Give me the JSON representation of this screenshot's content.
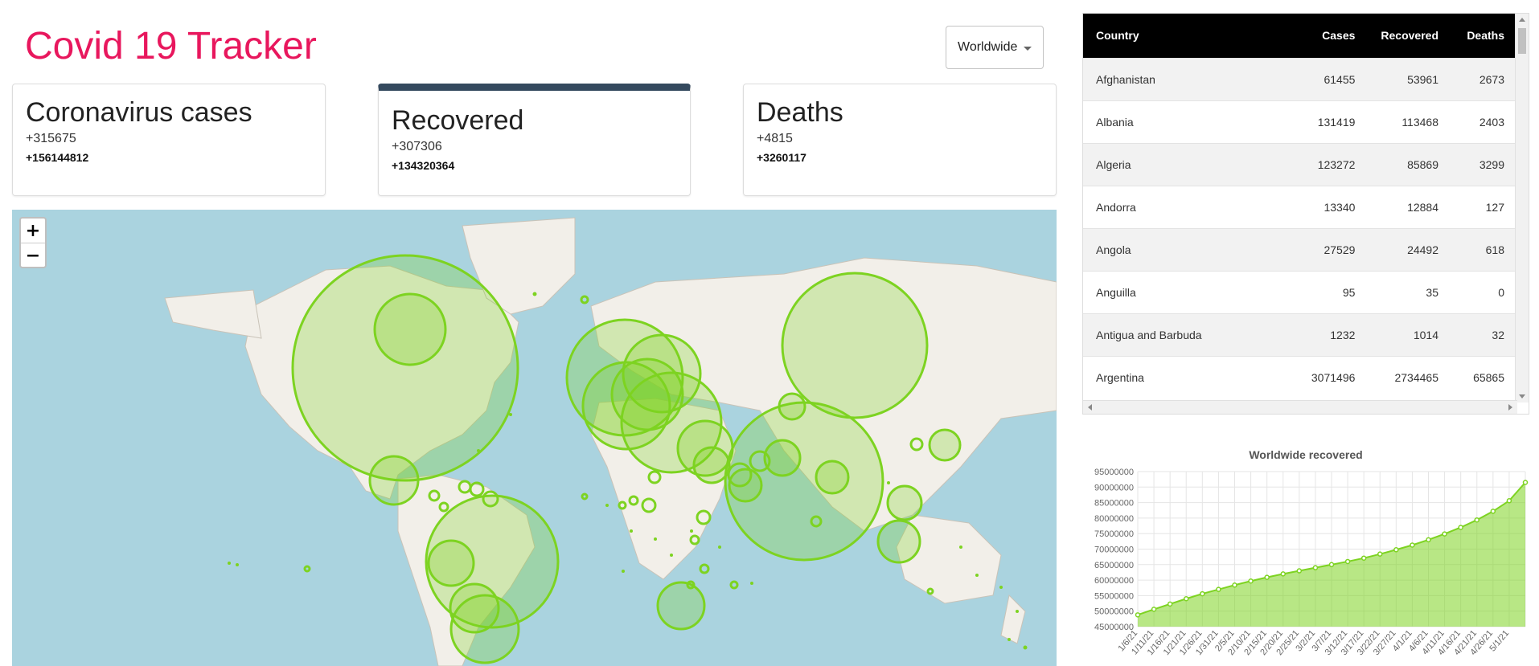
{
  "header": {
    "title": "Covid 19 Tracker",
    "country_select": "Worldwide"
  },
  "stats": [
    {
      "title": "Coronavirus cases",
      "today": "+315675",
      "total": "+156144812",
      "active": false
    },
    {
      "title": "Recovered",
      "today": "+307306",
      "total": "+134320364",
      "active": true
    },
    {
      "title": "Deaths",
      "today": "+4815",
      "total": "+3260117",
      "active": false
    }
  ],
  "map": {
    "zoom_in": "+",
    "zoom_out": "−",
    "circle_color": "#7dd321",
    "water_color": "#aad3df",
    "land_color": "#f2efe9"
  },
  "table": {
    "headers": [
      "Country",
      "Cases",
      "Recovered",
      "Deaths"
    ],
    "rows": [
      [
        "Afghanistan",
        "61455",
        "53961",
        "2673"
      ],
      [
        "Albania",
        "131419",
        "113468",
        "2403"
      ],
      [
        "Algeria",
        "123272",
        "85869",
        "3299"
      ],
      [
        "Andorra",
        "13340",
        "12884",
        "127"
      ],
      [
        "Angola",
        "27529",
        "24492",
        "618"
      ],
      [
        "Anguilla",
        "95",
        "35",
        "0"
      ],
      [
        "Antigua and Barbuda",
        "1232",
        "1014",
        "32"
      ],
      [
        "Argentina",
        "3071496",
        "2734465",
        "65865"
      ]
    ]
  },
  "chart_data": {
    "type": "area",
    "title": "Worldwide recovered",
    "xlabel": "",
    "ylabel": "",
    "ylim": [
      45000000,
      95000000
    ],
    "yticks": [
      "95000000",
      "90000000",
      "85000000",
      "80000000",
      "75000000",
      "70000000",
      "65000000",
      "60000000",
      "55000000",
      "50000000",
      "45000000"
    ],
    "grid": true,
    "color": "#7dd321",
    "x": [
      "1/6/21",
      "1/11/21",
      "1/16/21",
      "1/21/21",
      "1/26/21",
      "1/31/21",
      "2/5/21",
      "2/10/21",
      "2/15/21",
      "2/20/21",
      "2/25/21",
      "3/2/21",
      "3/7/21",
      "3/12/21",
      "3/17/21",
      "3/22/21",
      "3/27/21",
      "4/1/21",
      "4/6/21",
      "4/11/21",
      "4/16/21",
      "4/21/21",
      "4/26/21",
      "5/1/21",
      "5/5/21"
    ],
    "x_tick_labels": [
      "1/6/21",
      "1/11/21",
      "1/16/21",
      "1/21/21",
      "1/26/21",
      "1/31/21",
      "2/5/21",
      "2/10/21",
      "2/15/21",
      "2/20/21",
      "2/25/21",
      "3/2/21",
      "3/7/21",
      "3/12/21",
      "3/17/21",
      "3/22/21",
      "3/27/21",
      "4/1/21",
      "4/6/21",
      "4/11/21",
      "4/16/21",
      "4/21/21",
      "4/26/21",
      "5/1/21"
    ],
    "values": [
      48800000,
      50600000,
      52300000,
      54000000,
      55600000,
      57000000,
      58400000,
      59700000,
      60900000,
      62000000,
      63000000,
      64000000,
      65000000,
      66000000,
      67100000,
      68400000,
      69800000,
      71300000,
      73000000,
      74900000,
      77000000,
      79400000,
      82200000,
      85600000,
      91500000
    ]
  }
}
